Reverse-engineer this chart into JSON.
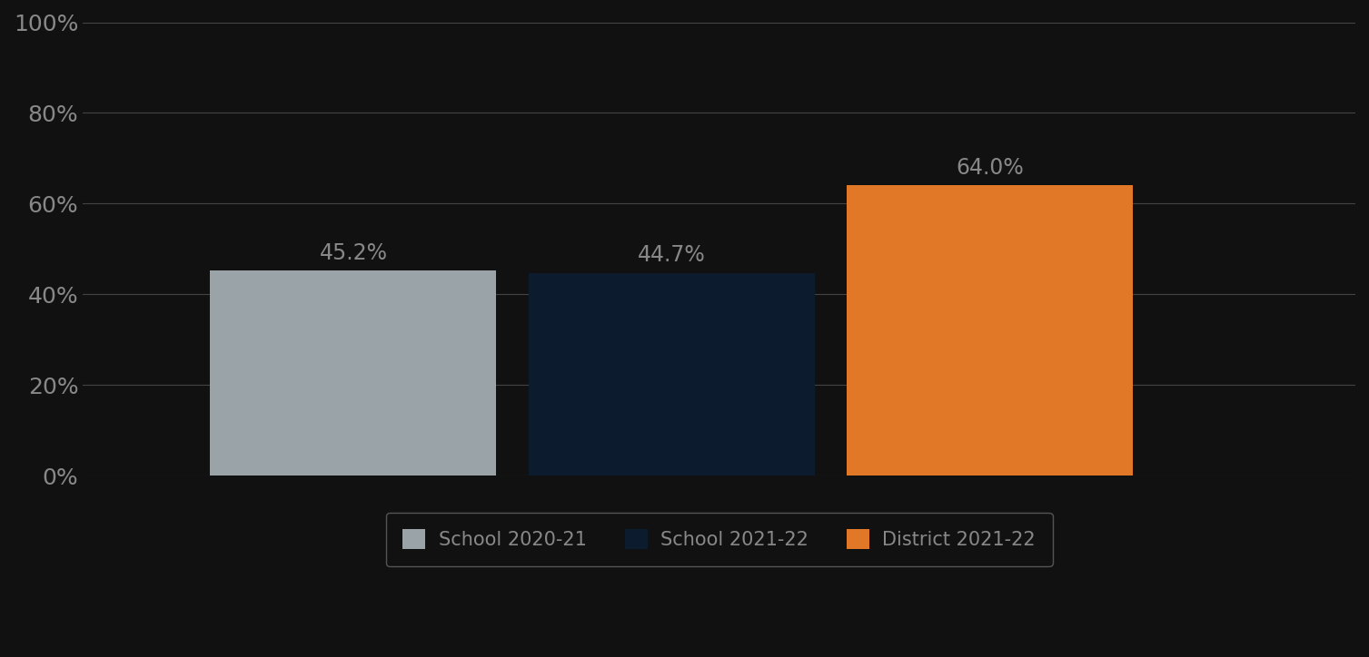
{
  "categories": [
    "School 2020-21",
    "School 2021-22",
    "District 2021-22"
  ],
  "values": [
    45.2,
    44.7,
    64.0
  ],
  "bar_colors": [
    "#9aa4a8",
    "#0d1b2e",
    "#e07828"
  ],
  "labels": [
    "45.2%",
    "44.7%",
    "64.0%"
  ],
  "ylim": [
    0,
    100
  ],
  "yticks": [
    0,
    20,
    40,
    60,
    80,
    100
  ],
  "yticklabels": [
    "0%",
    "20%",
    "40%",
    "60%",
    "80%",
    "100%"
  ],
  "background_color": "#111111",
  "plot_bg_color": "#111111",
  "grid_color": "#444444",
  "label_color": "#888888",
  "tick_color": "#888888",
  "legend_entries": [
    "School 2020-21",
    "School 2021-22",
    "District 2021-22"
  ],
  "legend_colors": [
    "#9aa4a8",
    "#0d1b2e",
    "#e07828"
  ],
  "bar_width": 0.18,
  "x_positions": [
    0.22,
    0.42,
    0.62
  ],
  "xlim": [
    0.05,
    0.85
  ],
  "label_fontsize": 17,
  "tick_fontsize": 18,
  "legend_fontsize": 15
}
